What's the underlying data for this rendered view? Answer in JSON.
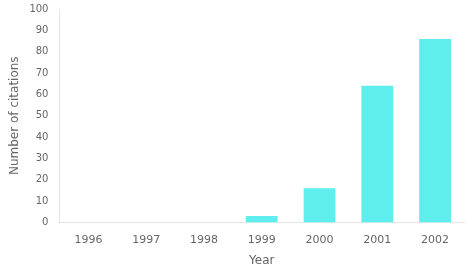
{
  "chart_data": {
    "type": "bar",
    "categories": [
      "1996",
      "1997",
      "1998",
      "1999",
      "2000",
      "2001",
      "2002"
    ],
    "values": [
      0,
      0,
      0,
      3,
      16,
      64,
      86
    ],
    "color": "#5EEEED",
    "xlabel": "Year",
    "ylabel": "Number of citations",
    "ylim": [
      0,
      100
    ],
    "yticks": [
      0,
      10,
      20,
      30,
      40,
      50,
      60,
      70,
      80,
      90,
      100
    ],
    "grid": false
  }
}
